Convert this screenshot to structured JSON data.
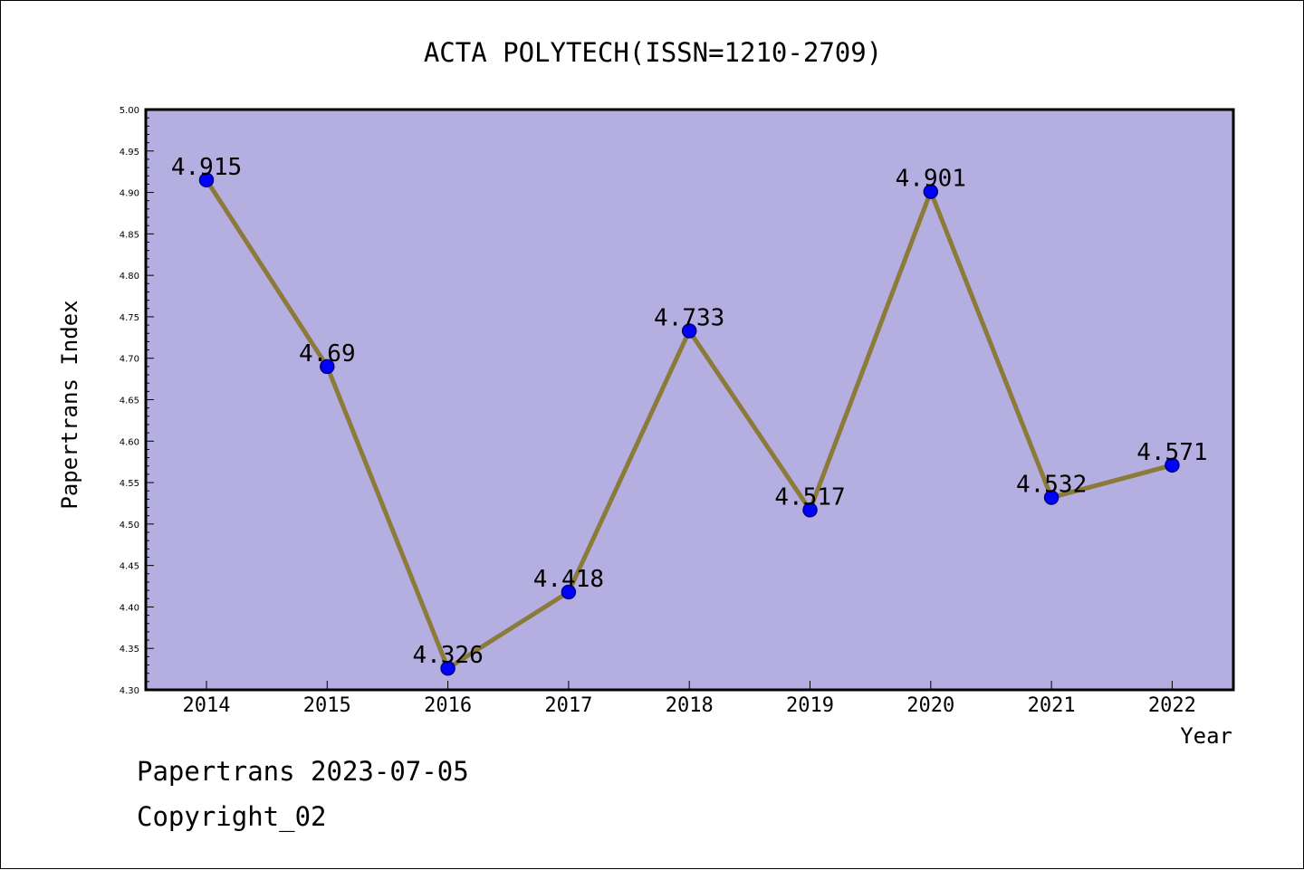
{
  "chart_data": {
    "type": "line",
    "title": "ACTA POLYTECH(ISSN=1210-2709)",
    "xlabel": "Year",
    "ylabel": "Papertrans Index",
    "categories": [
      "2014",
      "2015",
      "2016",
      "2017",
      "2018",
      "2019",
      "2020",
      "2021",
      "2022"
    ],
    "values": [
      4.915,
      4.69,
      4.326,
      4.418,
      4.733,
      4.517,
      4.901,
      4.532,
      4.571
    ],
    "data_labels": [
      "4.915",
      "4.69",
      "4.326",
      "4.418",
      "4.733",
      "4.517",
      "4.901",
      "4.532",
      "4.571"
    ],
    "ylim": [
      4.3,
      5.0
    ],
    "yticks": [
      "4.30",
      "4.35",
      "4.40",
      "4.45",
      "4.50",
      "4.55",
      "4.60",
      "4.65",
      "4.70",
      "4.75",
      "4.80",
      "4.85",
      "4.90",
      "4.95",
      "5.00"
    ],
    "grid": false,
    "legend": "none",
    "colors": {
      "plot_background": "#b5afe1",
      "line": "#8b7a3a",
      "marker_fill": "#0000ff",
      "marker_edge": "#000080",
      "axis": "#000000"
    }
  },
  "footer": {
    "line1": "Papertrans 2023-07-05",
    "line2": "Copyright_02"
  }
}
